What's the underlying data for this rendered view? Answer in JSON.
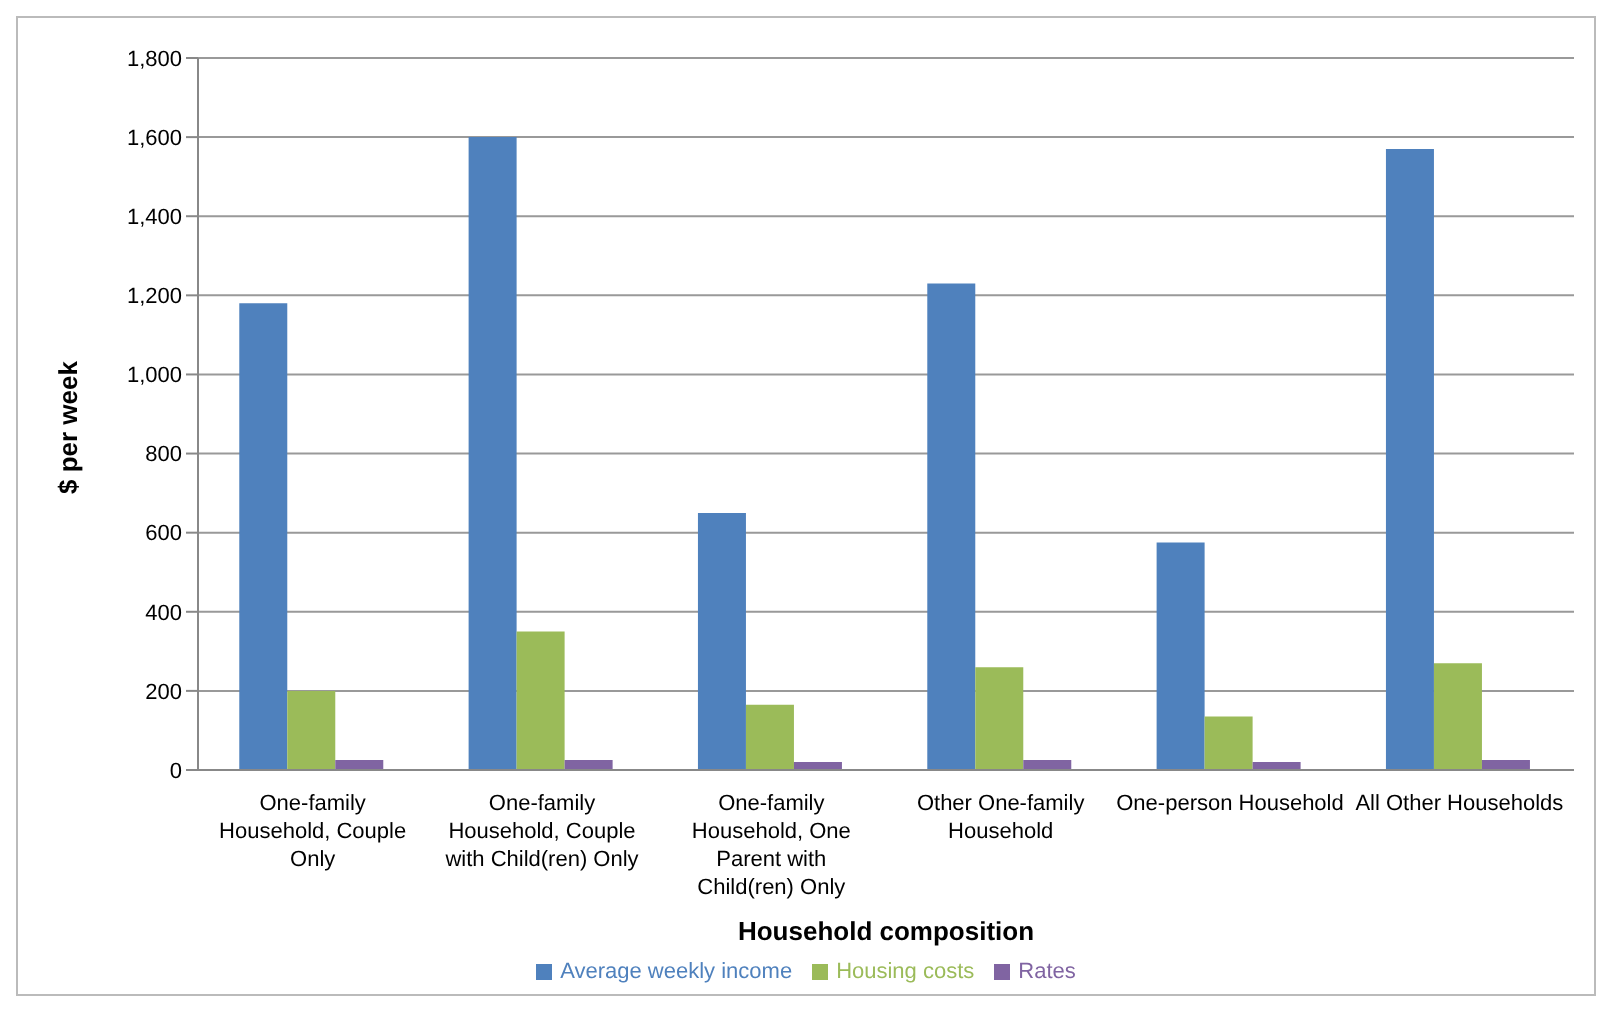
{
  "chart_data": {
    "type": "bar",
    "xlabel": "Household composition",
    "ylabel": "$ per week",
    "categories": [
      "One-family Household, Couple Only",
      "One-family Household, Couple with Child(ren) Only",
      "One-family Household, One Parent with Child(ren) Only",
      "Other One-family Household",
      "One-person Household",
      "All Other Households"
    ],
    "series": [
      {
        "name": "Average weekly income",
        "color": "#4f81bd",
        "values": [
          1180,
          1600,
          650,
          1230,
          575,
          1570
        ]
      },
      {
        "name": "Housing costs",
        "color": "#9bbb59",
        "values": [
          200,
          350,
          165,
          260,
          135,
          270
        ]
      },
      {
        "name": "Rates",
        "color": "#8064a2",
        "values": [
          25,
          25,
          20,
          25,
          20,
          25
        ]
      }
    ],
    "ylim": [
      0,
      1800
    ],
    "yticks": [
      0,
      200,
      400,
      600,
      800,
      {
        "value": 1000,
        "label": "1,000"
      },
      {
        "value": 1200,
        "label": "1,200"
      },
      {
        "value": 1400,
        "label": "1,400"
      },
      {
        "value": 1600,
        "label": "1,600"
      },
      {
        "value": 1800,
        "label": "1,800"
      }
    ],
    "grid": "y",
    "legend": "bottom"
  }
}
